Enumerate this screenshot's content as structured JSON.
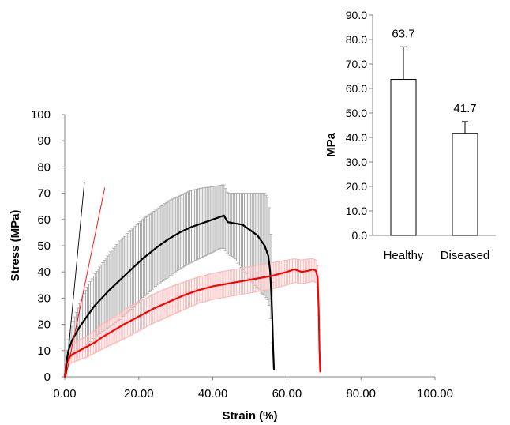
{
  "chart_data": [
    {
      "type": "line",
      "xlabel": "Strain (%)",
      "ylabel": "Stress (MPa)",
      "xlim": [
        0,
        100
      ],
      "ylim": [
        0,
        100
      ],
      "x_ticks": [
        "0.00",
        "20.00",
        "40.00",
        "60.00",
        "80.00",
        "100.00"
      ],
      "y_ticks": [
        "0",
        "10",
        "20",
        "30",
        "40",
        "50",
        "60",
        "70",
        "80",
        "90",
        "100"
      ],
      "grid": false,
      "series": [
        {
          "color": "#000000",
          "band_color": "#a8a8a8",
          "x": [
            0,
            0.5,
            1,
            2,
            4,
            6,
            8,
            10,
            12,
            15,
            18,
            21,
            25,
            28,
            31,
            34,
            37,
            40,
            42,
            43,
            44,
            46,
            48,
            50,
            52,
            53,
            54,
            55,
            55.5,
            56,
            56.3,
            56.5
          ],
          "y": [
            0,
            6,
            10,
            14,
            19,
            23,
            27,
            30,
            33,
            37,
            41,
            45,
            49.5,
            52.5,
            55,
            57,
            58.5,
            60,
            61,
            61.5,
            59,
            58.5,
            58,
            56,
            54,
            52,
            50,
            46,
            40,
            25,
            10,
            3
          ],
          "upper": [
            0,
            9,
            14,
            20,
            28,
            34,
            39,
            43,
            47,
            52,
            56,
            60,
            64,
            67,
            69,
            71,
            72,
            72.5,
            73,
            73.3,
            70,
            70,
            70,
            70,
            70,
            70,
            70,
            68,
            60,
            40,
            20,
            5
          ],
          "lower": [
            0,
            3,
            6,
            8,
            10,
            12,
            15,
            17,
            19,
            22,
            26,
            30,
            35,
            38,
            41,
            43.5,
            45.5,
            47.5,
            49,
            49,
            47,
            45,
            41,
            37,
            34,
            32,
            31,
            29,
            25,
            15,
            5,
            1
          ]
        },
        {
          "color": "#ff0000",
          "band_color": "#f7b9b9",
          "x": [
            0,
            0.5,
            1,
            2,
            4,
            6,
            8,
            10,
            13,
            16,
            20,
            24,
            28,
            32,
            36,
            40,
            44,
            48,
            52,
            56,
            60,
            62,
            64,
            66,
            67,
            67.8,
            68.3,
            68.6,
            68.8,
            69
          ],
          "y": [
            0,
            5,
            7,
            8.5,
            10,
            11.5,
            13,
            15,
            17.5,
            20,
            23,
            26,
            28.5,
            31,
            33,
            34.5,
            35.5,
            36.5,
            37.5,
            38.5,
            40,
            41,
            40,
            40.5,
            41,
            40.5,
            38,
            25,
            10,
            2
          ],
          "upper": [
            0,
            7,
            10,
            12,
            14,
            15.5,
            17.5,
            20,
            22.5,
            25.5,
            28.5,
            31.5,
            34,
            36,
            38,
            39.5,
            40.5,
            41.5,
            42.5,
            43.5,
            44.5,
            45,
            44.5,
            45,
            45,
            44.5,
            42,
            28,
            12,
            3
          ],
          "lower": [
            0,
            3,
            4.5,
            5.5,
            6.5,
            7.5,
            9,
            10.5,
            12.5,
            14.5,
            17.5,
            20.5,
            23,
            25.5,
            28,
            29.5,
            30.5,
            31.5,
            32.5,
            33.5,
            35,
            36,
            35.5,
            36,
            36.5,
            36,
            34,
            22,
            8,
            1
          ]
        },
        {
          "color": "#000000",
          "x": [
            0.3,
            5.3
          ],
          "y": [
            0,
            74
          ]
        },
        {
          "color": "#ff0000",
          "x": [
            0.3,
            10.8
          ],
          "y": [
            0,
            72
          ]
        }
      ]
    },
    {
      "type": "bar",
      "ylabel": "MPa",
      "ylim": [
        0,
        90
      ],
      "y_ticks": [
        "0.0",
        "10.0",
        "20.0",
        "30.0",
        "40.0",
        "50.0",
        "60.0",
        "70.0",
        "80.0",
        "90.0"
      ],
      "categories": [
        "Healthy",
        "Diseased"
      ],
      "values": [
        63.7,
        41.7
      ],
      "error_upper": [
        77,
        46.5
      ],
      "data_labels": [
        "63.7",
        "41.7"
      ],
      "bar_fill": "#ffffff",
      "bar_stroke": "#000000",
      "grid": false
    }
  ]
}
